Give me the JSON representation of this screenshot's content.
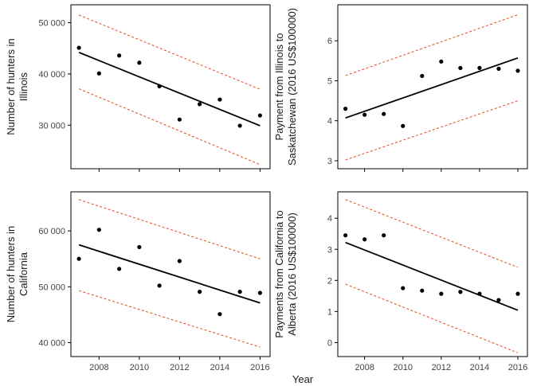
{
  "x_axis_title": "Year",
  "chart_data": [
    {
      "type": "scatter",
      "id": "illinois-hunters",
      "ylabel_lines": [
        "Number of hunters in",
        "Illinois"
      ],
      "xlim": [
        2006.6,
        2016.5
      ],
      "ylim": [
        21500,
        53500
      ],
      "xticks": [
        2008,
        2010,
        2012,
        2014,
        2016
      ],
      "xticks_visible": false,
      "yticks": [
        30000,
        40000,
        50000
      ],
      "ytick_labels": [
        "30 000",
        "40 000",
        "50 000"
      ],
      "points": [
        [
          2007,
          45100
        ],
        [
          2008,
          40100
        ],
        [
          2009,
          43600
        ],
        [
          2010,
          42200
        ],
        [
          2011,
          37600
        ],
        [
          2012,
          31100
        ],
        [
          2013,
          34100
        ],
        [
          2014,
          35000
        ],
        [
          2015,
          29900
        ],
        [
          2016,
          31900
        ]
      ],
      "fit": [
        [
          2007,
          44200
        ],
        [
          2016,
          29900
        ]
      ],
      "upper_bound": [
        [
          2007,
          51500
        ],
        [
          2016,
          37000
        ]
      ],
      "lower_bound": [
        [
          2007,
          37100
        ],
        [
          2016,
          22300
        ]
      ],
      "point_color": "#000000",
      "fit_color": "#000000",
      "bound_color": "#e8481c"
    },
    {
      "type": "scatter",
      "id": "illinois-to-saskatchewan-payment",
      "ylabel_lines": [
        "Payment from Illinois to",
        "Saskatchewan (2016 US$100000)"
      ],
      "xlim": [
        2006.6,
        2016.5
      ],
      "ylim": [
        2.8,
        6.9
      ],
      "xticks": [
        2008,
        2010,
        2012,
        2014,
        2016
      ],
      "xticks_visible": false,
      "yticks": [
        3,
        4,
        5,
        6
      ],
      "ytick_labels": [
        "3",
        "4",
        "5",
        "6"
      ],
      "points": [
        [
          2007,
          4.3
        ],
        [
          2008,
          4.15
        ],
        [
          2009,
          4.17
        ],
        [
          2010,
          3.87
        ],
        [
          2011,
          5.12
        ],
        [
          2012,
          5.48
        ],
        [
          2013,
          5.32
        ],
        [
          2014,
          5.32
        ],
        [
          2015,
          5.3
        ],
        [
          2016,
          5.25
        ]
      ],
      "fit": [
        [
          2007,
          4.07
        ],
        [
          2016,
          5.57
        ]
      ],
      "upper_bound": [
        [
          2007,
          5.13
        ],
        [
          2016,
          6.65
        ]
      ],
      "lower_bound": [
        [
          2007,
          3.02
        ],
        [
          2016,
          4.5
        ]
      ],
      "point_color": "#000000",
      "fit_color": "#000000",
      "bound_color": "#e8481c"
    },
    {
      "type": "scatter",
      "id": "california-hunters",
      "ylabel_lines": [
        "Number of hunters in",
        "California"
      ],
      "xlim": [
        2006.6,
        2016.5
      ],
      "ylim": [
        37500,
        67000
      ],
      "xticks": [
        2008,
        2010,
        2012,
        2014,
        2016
      ],
      "xticks_visible": true,
      "yticks": [
        40000,
        50000,
        60000
      ],
      "ytick_labels": [
        "40 000",
        "50 000",
        "60 000"
      ],
      "points": [
        [
          2007,
          55000
        ],
        [
          2008,
          60200
        ],
        [
          2009,
          53200
        ],
        [
          2010,
          57100
        ],
        [
          2011,
          50200
        ],
        [
          2012,
          54600
        ],
        [
          2013,
          49100
        ],
        [
          2014,
          45100
        ],
        [
          2015,
          49100
        ],
        [
          2016,
          48900
        ]
      ],
      "fit": [
        [
          2007,
          57500
        ],
        [
          2016,
          47100
        ]
      ],
      "upper_bound": [
        [
          2007,
          65600
        ],
        [
          2016,
          55000
        ]
      ],
      "lower_bound": [
        [
          2007,
          49300
        ],
        [
          2016,
          39200
        ]
      ],
      "point_color": "#000000",
      "fit_color": "#000000",
      "bound_color": "#e8481c"
    },
    {
      "type": "scatter",
      "id": "california-to-alberta-payments",
      "ylabel_lines": [
        "Payments from California to",
        "Alberta (2016 US$100000)"
      ],
      "xlim": [
        2006.6,
        2016.5
      ],
      "ylim": [
        -0.45,
        4.85
      ],
      "xticks": [
        2008,
        2010,
        2012,
        2014,
        2016
      ],
      "xticks_visible": true,
      "yticks": [
        0,
        1,
        2,
        3,
        4
      ],
      "ytick_labels": [
        "0",
        "1",
        "2",
        "3",
        "4"
      ],
      "points": [
        [
          2007,
          3.45
        ],
        [
          2008,
          3.32
        ],
        [
          2009,
          3.45
        ],
        [
          2010,
          1.75
        ],
        [
          2011,
          1.67
        ],
        [
          2012,
          1.57
        ],
        [
          2013,
          1.63
        ],
        [
          2014,
          1.57
        ],
        [
          2015,
          1.37
        ],
        [
          2016,
          1.57
        ]
      ],
      "fit": [
        [
          2007,
          3.22
        ],
        [
          2016,
          1.04
        ]
      ],
      "upper_bound": [
        [
          2007,
          4.6
        ],
        [
          2016,
          2.42
        ]
      ],
      "lower_bound": [
        [
          2007,
          1.88
        ],
        [
          2016,
          -0.33
        ]
      ],
      "point_color": "#000000",
      "fit_color": "#000000",
      "bound_color": "#e8481c"
    }
  ]
}
